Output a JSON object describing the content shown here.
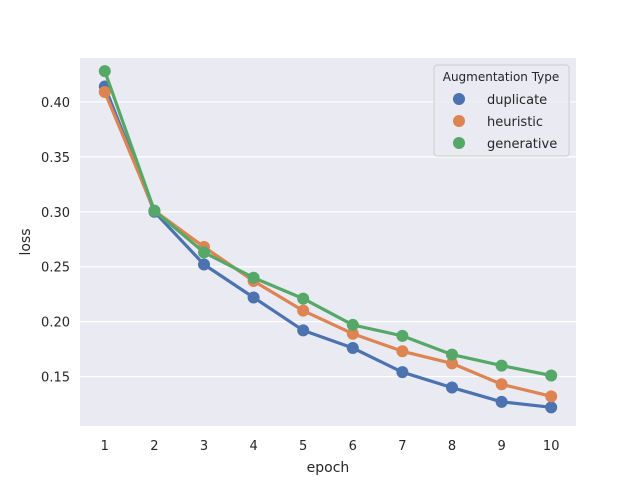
{
  "chart_data": {
    "type": "line",
    "title": "",
    "xlabel": "epoch",
    "ylabel": "loss",
    "categories": [
      "1",
      "2",
      "3",
      "4",
      "5",
      "6",
      "7",
      "8",
      "9",
      "10"
    ],
    "ylim": [
      0.105,
      0.44
    ],
    "yticks": [
      0.15,
      0.2,
      0.25,
      0.3,
      0.35,
      0.4
    ],
    "ytick_labels": [
      "0.15",
      "0.20",
      "0.25",
      "0.30",
      "0.35",
      "0.40"
    ],
    "grid": true,
    "legend": {
      "title": "Augmentation Type",
      "placement": "top-right"
    },
    "series": [
      {
        "name": "duplicate",
        "color": "#4c72b0",
        "values": [
          0.414,
          0.3,
          0.252,
          0.222,
          0.192,
          0.176,
          0.154,
          0.14,
          0.127,
          0.122
        ]
      },
      {
        "name": "heuristic",
        "color": "#dd8452",
        "values": [
          0.409,
          0.301,
          0.268,
          0.237,
          0.21,
          0.189,
          0.173,
          0.162,
          0.143,
          0.132
        ]
      },
      {
        "name": "generative",
        "color": "#55a868",
        "values": [
          0.428,
          0.301,
          0.263,
          0.24,
          0.221,
          0.197,
          0.187,
          0.17,
          0.16,
          0.151
        ]
      }
    ]
  }
}
